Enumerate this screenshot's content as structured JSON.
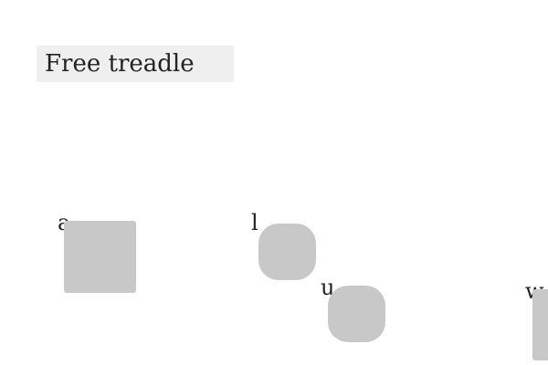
{
  "title": "Free treadle",
  "tiles": [
    {
      "label": "a",
      "color": "#c8c8c8"
    },
    {
      "label": "l",
      "color": "#c8c8c8"
    },
    {
      "label": "u",
      "color": "#c8c8c8"
    },
    {
      "label": "w",
      "color": "#c8c8c8"
    }
  ],
  "colors": {
    "title_background": "#efefef",
    "tile_fill": "#c8c8c8",
    "background": "#ffffff"
  }
}
